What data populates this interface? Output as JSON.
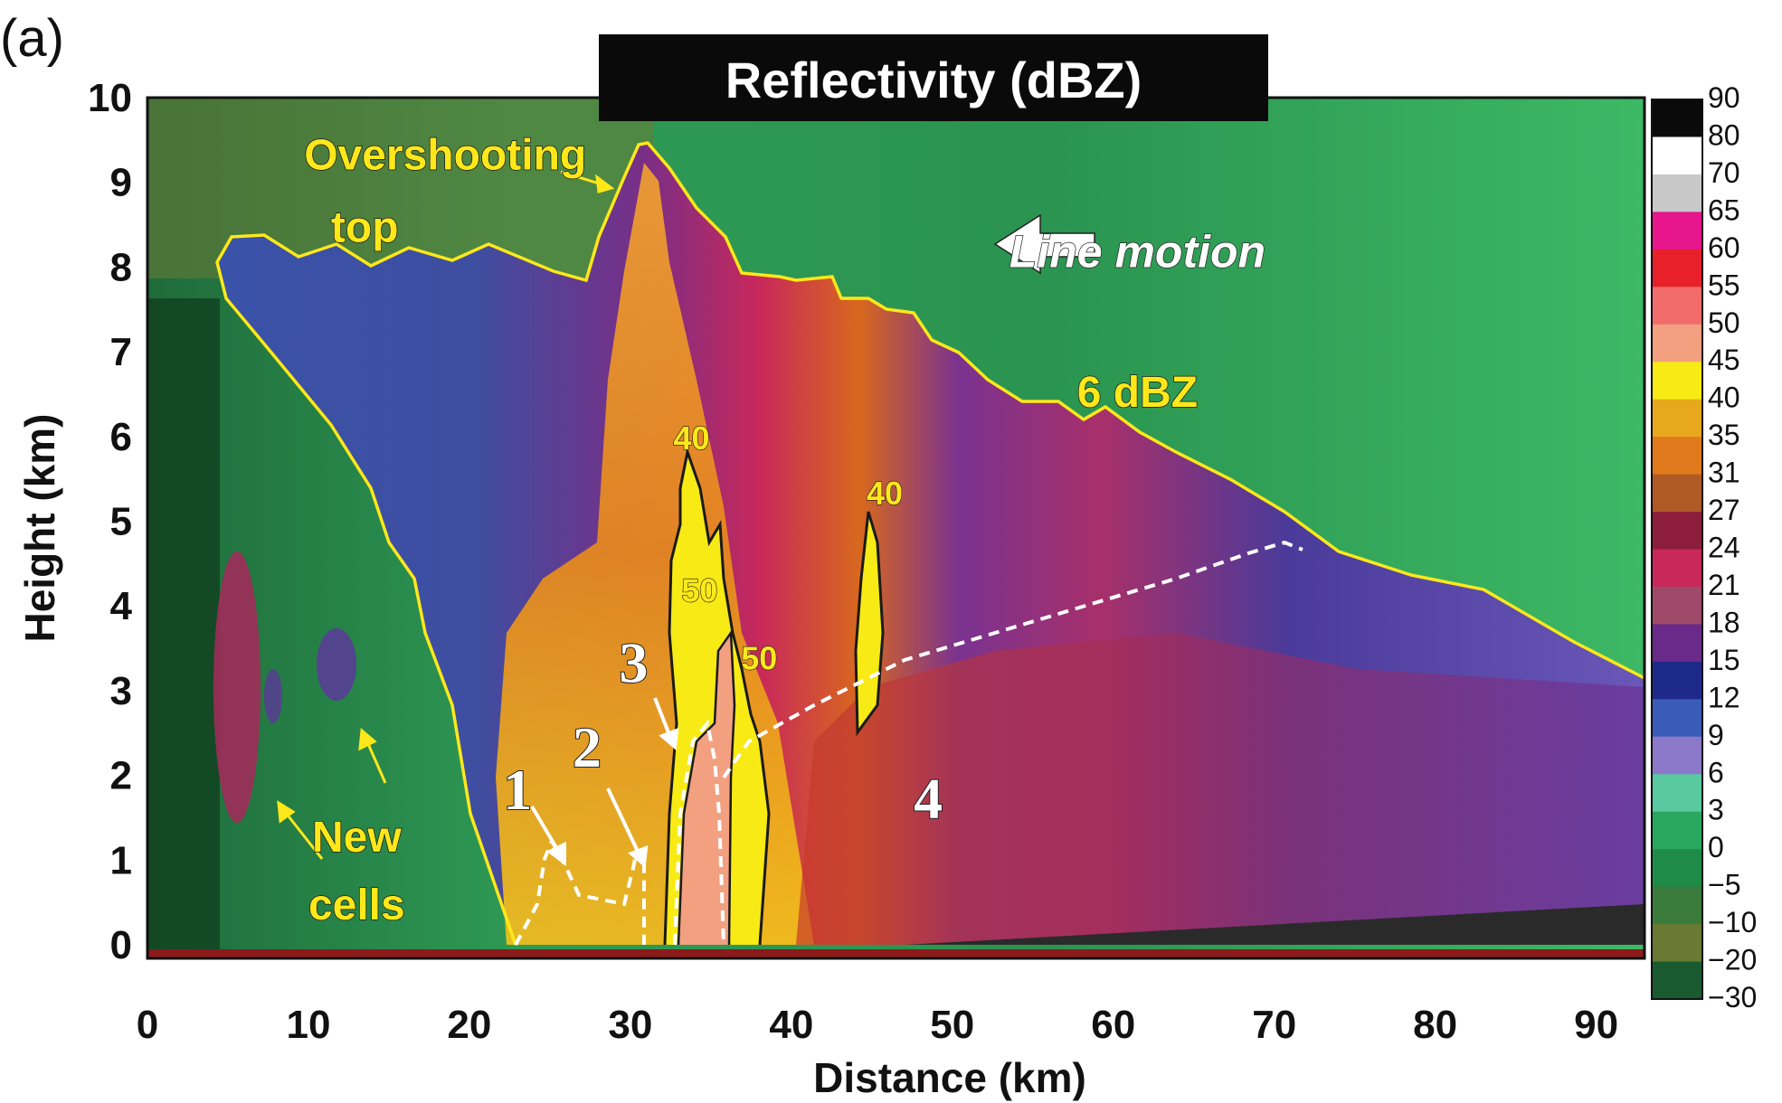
{
  "panel_label": "(a)",
  "chart_data": {
    "type": "heatmap",
    "title": "Reflectivity (dBZ)",
    "xlabel": "Distance (km)",
    "ylabel": "Height  (km)",
    "xlim": [
      0,
      93
    ],
    "ylim": [
      0,
      10
    ],
    "x_ticks": [
      "0",
      "10",
      "20",
      "30",
      "40",
      "50",
      "60",
      "70",
      "80",
      "90"
    ],
    "y_ticks": [
      "0",
      "1",
      "2",
      "3",
      "4",
      "5",
      "6",
      "7",
      "8",
      "9",
      "10"
    ],
    "colorbar": {
      "ticks": [
        "90",
        "80",
        "70",
        "65",
        "60",
        "55",
        "50",
        "45",
        "40",
        "35",
        "31",
        "27",
        "24",
        "21",
        "18",
        "15",
        "12",
        "9",
        "6",
        "3",
        "0",
        "−5",
        "−10",
        "−20",
        "−30"
      ],
      "colors": [
        "#0a0a0a",
        "#ffffff",
        "#c8c8c8",
        "#e8168c",
        "#e8202a",
        "#f26c6c",
        "#f2a080",
        "#f8ea14",
        "#e8a81e",
        "#e07a1c",
        "#b05a28",
        "#8c1e3c",
        "#c8285a",
        "#a04a6a",
        "#6a2a8a",
        "#1e2a8a",
        "#3a5cb8",
        "#8c78c8",
        "#5ac8a0",
        "#2aa860",
        "#1e8c48",
        "#3a7a3a",
        "#6a7a32",
        "#1a5a30"
      ]
    },
    "outer_contour_label": "6 dBZ",
    "contour_labels": [
      {
        "text": "40",
        "x": 33.8,
        "y": 5.85
      },
      {
        "text": "40",
        "x": 45.8,
        "y": 5.2
      },
      {
        "text": "50",
        "x": 34.3,
        "y": 4.05
      },
      {
        "text": "50",
        "x": 38.0,
        "y": 3.25
      }
    ],
    "annotations": [
      {
        "text": "Overshooting",
        "x": 18.5,
        "y": 9.15
      },
      {
        "text": "top",
        "x": 13.5,
        "y": 8.3
      },
      {
        "text": "Line motion",
        "x": 61.5,
        "y": 8.0
      },
      {
        "text": "6 dBZ",
        "x": 61.5,
        "y": 6.35
      },
      {
        "text": "New",
        "x": 13.0,
        "y": 1.1
      },
      {
        "text": "cells",
        "x": 13.0,
        "y": 0.3
      }
    ],
    "region_numbers": [
      {
        "text": "1",
        "x": 23.0,
        "y": 1.6
      },
      {
        "text": "2",
        "x": 27.3,
        "y": 2.1
      },
      {
        "text": "3",
        "x": 30.2,
        "y": 3.1
      },
      {
        "text": "4",
        "x": 48.5,
        "y": 1.5
      }
    ]
  }
}
